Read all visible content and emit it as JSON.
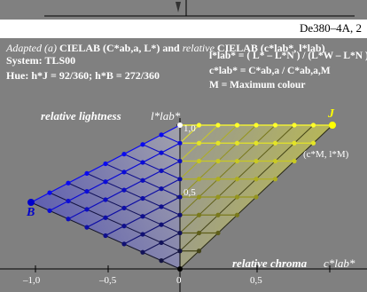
{
  "page_code": "De380–4A, 2",
  "header": {
    "line1_a": "Adapted (a)",
    "line1_b": "CIELAB (C*ab,a, L*) and",
    "line1_c": "relative",
    "line1_d": "CIELAB (c*lab*, l*lab)",
    "line2": "System: TLS00",
    "line3": "Hue: h*J = 92/360; h*B = 272/360"
  },
  "formulas": {
    "f1": "l*lab* = ( L* – L*N ) / (L*W – L*N )",
    "f2": "c*lab* = C*ab,a / C*ab,a,M",
    "f3": "M = Maximum colour"
  },
  "labels": {
    "relative_lightness": "relative lightness",
    "l_axis": "l*lab*",
    "relative_chroma": "relative chroma",
    "c_axis": "c*lab*",
    "tick_1_0": "1,0",
    "tick_0_5": "0,5",
    "point_M": "(c*M, l*M)",
    "J": "J",
    "B": "B"
  },
  "x_ticks": [
    "–1,0",
    "–0,5",
    "0",
    "0,5"
  ],
  "colors": {
    "background": "#808080",
    "yellow_J": "#ffff00",
    "blue_B": "#0000cc",
    "white": "#ffffff"
  }
}
